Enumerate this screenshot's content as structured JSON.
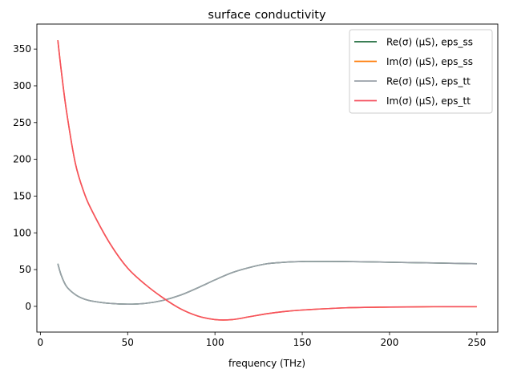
{
  "chart_data": {
    "type": "line",
    "title": "surface conductivity",
    "xlabel": "frequency (THz)",
    "ylabel": "",
    "xlim": [
      -2,
      262
    ],
    "ylim": [
      -35,
      384
    ],
    "xticks": [
      0,
      50,
      100,
      150,
      200,
      250
    ],
    "yticks": [
      0,
      50,
      100,
      150,
      200,
      250,
      300,
      350
    ],
    "grid": false,
    "legend": "top-right",
    "x": [
      10,
      12,
      15,
      20,
      25,
      30,
      40,
      50,
      60,
      70,
      80,
      90,
      100,
      110,
      120,
      130,
      140,
      150,
      175,
      200,
      225,
      250
    ],
    "series": [
      {
        "name": "Re(σ) (μS), eps_ss",
        "color": "#1f6b3d",
        "values": [
          58,
          42,
          27,
          16,
          10,
          7,
          4,
          3,
          4,
          8,
          15,
          25,
          36,
          46,
          53,
          58,
          60,
          61,
          61,
          60,
          59,
          58
        ]
      },
      {
        "name": "Im(σ) (μS), eps_ss",
        "color": "#ff7f0e",
        "values": [
          362,
          320,
          265,
          195,
          155,
          128,
          85,
          52,
          30,
          12,
          -3,
          -13,
          -18,
          -18,
          -14,
          -10,
          -7,
          -5,
          -2,
          -1,
          -0.5,
          -0.5
        ]
      },
      {
        "name": "Re(σ) (μS), eps_tt",
        "color": "#9aa0a8",
        "values": [
          58,
          42,
          27,
          16,
          10,
          7,
          4,
          3,
          4,
          8,
          15,
          25,
          36,
          46,
          53,
          58,
          60,
          61,
          61,
          60,
          59,
          58
        ]
      },
      {
        "name": "Im(σ) (μS), eps_tt",
        "color": "#f5505f",
        "values": [
          362,
          320,
          265,
          195,
          155,
          128,
          85,
          52,
          30,
          12,
          -3,
          -13,
          -18,
          -18,
          -14,
          -10,
          -7,
          -5,
          -2,
          -1,
          -0.5,
          -0.5
        ]
      }
    ]
  }
}
